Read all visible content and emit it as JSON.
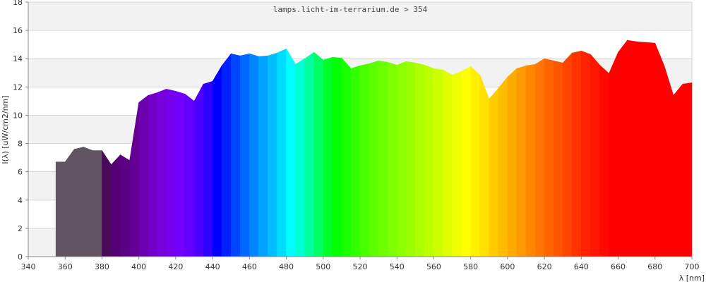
{
  "chart_data": {
    "type": "area",
    "title": "lamps.licht-im-terrarium.de > 354",
    "xlabel": "λ [nm]",
    "ylabel": "I(λ) [uW/cm2/nm]",
    "xlim": [
      340,
      700
    ],
    "ylim": [
      0,
      18
    ],
    "x_ticks": [
      340,
      360,
      380,
      400,
      420,
      440,
      460,
      480,
      500,
      520,
      540,
      560,
      580,
      600,
      620,
      640,
      660,
      680,
      700
    ],
    "y_ticks": [
      0,
      2,
      4,
      6,
      8,
      10,
      12,
      14,
      16,
      18
    ],
    "grid": true,
    "legend": "none",
    "series": [
      {
        "x": [
          355,
          360,
          365,
          370,
          375,
          380,
          385,
          390,
          395,
          400,
          405,
          410,
          415,
          420,
          425,
          430,
          435,
          440,
          445,
          450,
          455,
          460,
          465,
          470,
          475,
          480,
          485,
          490,
          495,
          500,
          505,
          510,
          515,
          520,
          525,
          530,
          535,
          540,
          545,
          550,
          555,
          560,
          565,
          570,
          575,
          580,
          585,
          590,
          595,
          600,
          605,
          610,
          615,
          620,
          625,
          630,
          635,
          640,
          645,
          650,
          655,
          660,
          665,
          670,
          675,
          680,
          685,
          690,
          695,
          700
        ],
        "y": [
          6.7,
          6.7,
          7.6,
          7.75,
          7.5,
          7.5,
          6.5,
          7.2,
          6.8,
          10.9,
          11.4,
          11.6,
          11.85,
          11.7,
          11.5,
          11.0,
          12.2,
          12.4,
          13.5,
          14.35,
          14.2,
          14.35,
          14.15,
          14.2,
          14.4,
          14.7,
          13.6,
          14.0,
          14.45,
          13.9,
          14.1,
          14.05,
          13.3,
          13.5,
          13.65,
          13.85,
          13.75,
          13.55,
          13.8,
          13.7,
          13.55,
          13.3,
          13.2,
          12.85,
          13.1,
          13.45,
          12.85,
          11.15,
          11.9,
          12.7,
          13.3,
          13.5,
          13.6,
          14.0,
          13.85,
          13.7,
          14.4,
          14.55,
          14.3,
          13.55,
          12.95,
          14.45,
          15.3,
          15.2,
          15.15,
          15.1,
          13.5,
          11.4,
          12.2,
          12.3
        ]
      }
    ],
    "band_colors": [
      "#625460",
      "#625460",
      "#625460",
      "#625460",
      "#625460",
      "#4a0a58",
      "#530075",
      "#5a0082",
      "#610093",
      "#6b00ae",
      "#7100c8",
      "#7500dc",
      "#7600ed",
      "#7200ff",
      "#6300ff",
      "#4e00ff",
      "#2e00ff",
      "#0000ff",
      "#0020ff",
      "#0046ff",
      "#0068ff",
      "#0086ff",
      "#00a2ff",
      "#00beff",
      "#00dcff",
      "#00fcff",
      "#00ffd2",
      "#00ffa0",
      "#00ff64",
      "#00ff2a",
      "#00ff00",
      "#1aff00",
      "#32ff00",
      "#48ff00",
      "#5cff00",
      "#6cff00",
      "#7cff00",
      "#8cff00",
      "#9cff00",
      "#adff00",
      "#beff00",
      "#ceff00",
      "#dfff00",
      "#efff00",
      "#ffff00",
      "#fff000",
      "#ffe000",
      "#ffcc00",
      "#ffbb00",
      "#ffaa00",
      "#ff9900",
      "#ff8800",
      "#ff7700",
      "#ff6600",
      "#ff5500",
      "#ff4400",
      "#ff3300",
      "#ff2200",
      "#ff1500",
      "#ff0800",
      "#ff0000",
      "#ff0000",
      "#ff0000",
      "#ff0000",
      "#ff0000",
      "#ff0000",
      "#ff0000",
      "#ff0000",
      "#ff0000"
    ],
    "colors": {
      "grid_band": "#f2f2f2",
      "grid_line": "#d6d6d6",
      "axis_line": "#888888",
      "text": "#333333"
    }
  }
}
